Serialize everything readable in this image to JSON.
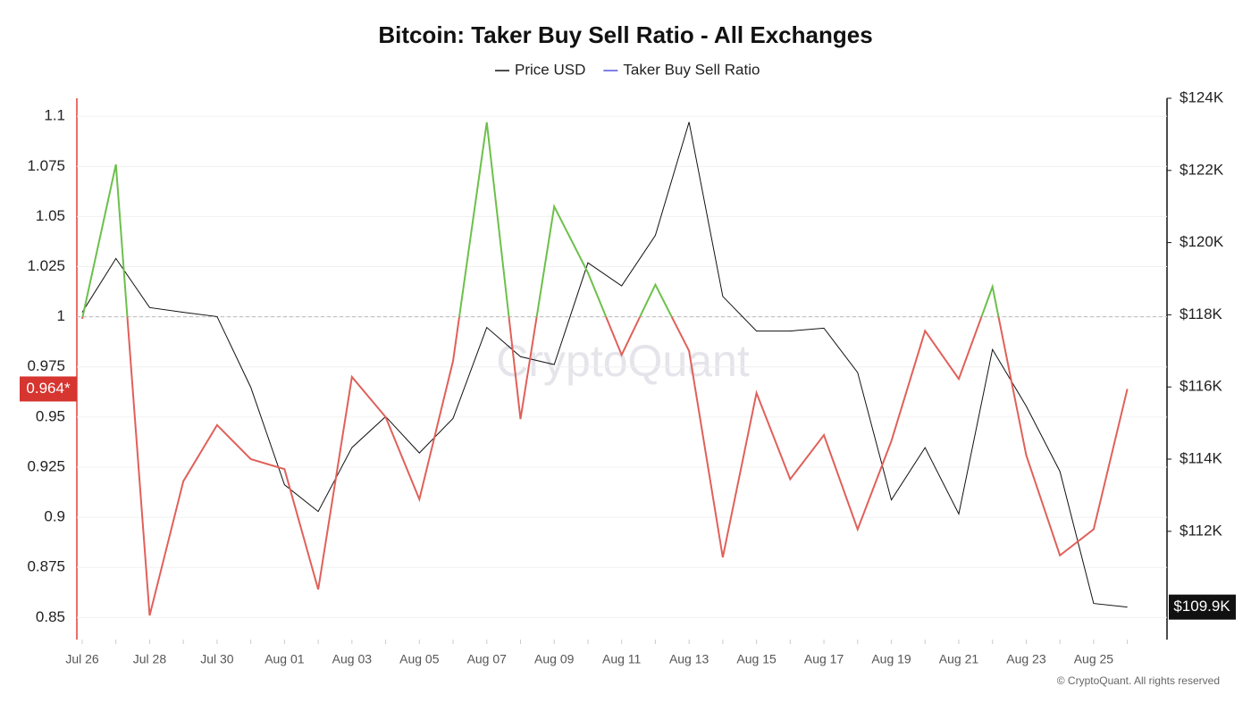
{
  "chart_data": {
    "type": "line",
    "title": "Bitcoin: Taker Buy Sell Ratio - All Exchanges",
    "watermark": "CryptoQuant",
    "copyright": "© CryptoQuant. All rights reserved",
    "categories": [
      "Jul 26",
      null,
      "Jul 28",
      null,
      "Jul 30",
      null,
      "Aug 01",
      null,
      "Aug 03",
      null,
      "Aug 05",
      null,
      "Aug 07",
      null,
      "Aug 09",
      null,
      "Aug 11",
      null,
      "Aug 13",
      null,
      "Aug 15",
      null,
      "Aug 17",
      null,
      "Aug 19",
      null,
      "Aug 21",
      null,
      "Aug 23",
      null,
      "Aug 25",
      null
    ],
    "series": [
      {
        "name": "Price USD",
        "color": "#111111",
        "axis": "y2",
        "current_label": "$109.9K",
        "values": [
          118070,
          119560,
          118200,
          118070,
          117950,
          115990,
          113290,
          112550,
          114320,
          115180,
          114170,
          115130,
          117650,
          116840,
          116620,
          119440,
          118800,
          120200,
          123340,
          118510,
          117550,
          117550,
          117630,
          116400,
          112870,
          114320,
          112480,
          117040,
          115470,
          113660,
          110000,
          109900
        ]
      },
      {
        "name": "Taker Buy Sell Ratio",
        "color": "#5555dd",
        "above_color": "#6cc04a",
        "below_color": "#e0605a",
        "current_label": "0.964*",
        "values": [
          0.999,
          1.076,
          0.851,
          0.918,
          0.946,
          0.929,
          0.924,
          0.864,
          0.97,
          0.95,
          0.909,
          0.978,
          1.097,
          0.949,
          1.055,
          1.022,
          0.981,
          1.016,
          0.983,
          0.88,
          0.962,
          0.919,
          0.941,
          0.894,
          0.938,
          0.993,
          0.969,
          1.015,
          0.931,
          0.881,
          0.894,
          0.964
        ]
      }
    ],
    "reference_line": 1,
    "ylim": [
      0.839,
      1.109
    ],
    "yticks": [
      0.85,
      0.875,
      0.9,
      0.925,
      0.95,
      0.975,
      1,
      1.025,
      1.05,
      1.075,
      1.1
    ],
    "y2lim": [
      109000,
      124000
    ],
    "y2ticks": [
      {
        "value": 112000,
        "label": "$112K"
      },
      {
        "value": 114000,
        "label": "$114K"
      },
      {
        "value": 116000,
        "label": "$116K"
      },
      {
        "value": 118000,
        "label": "$118K"
      },
      {
        "value": 120000,
        "label": "$120K"
      },
      {
        "value": 122000,
        "label": "$122K"
      },
      {
        "value": 124000,
        "label": "$124K"
      }
    ],
    "grid": true
  }
}
